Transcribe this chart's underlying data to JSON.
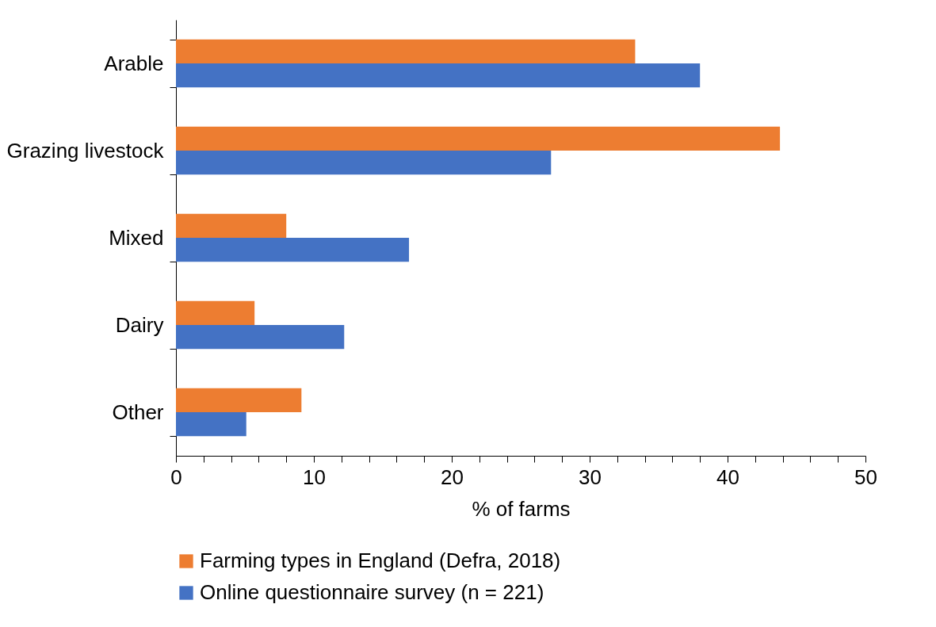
{
  "chart_data": {
    "type": "bar",
    "orientation": "horizontal",
    "xlabel": "% of farms",
    "categories": [
      "Arable",
      "Grazing livestock",
      "Mixed",
      "Dairy",
      "Other"
    ],
    "series": [
      {
        "name": "Farming types in England (Defra, 2018)",
        "color": "#ed7d31",
        "values": [
          33.3,
          43.8,
          8.0,
          5.7,
          9.1
        ]
      },
      {
        "name": "Online questionnaire survey (n = 221)",
        "color": "#4472c4",
        "values": [
          38.0,
          27.2,
          16.9,
          12.2,
          5.1
        ]
      }
    ],
    "xlim": [
      0,
      50
    ],
    "xticks": [
      0,
      {
        "value": 2,
        "label": null
      },
      {
        "value": 4,
        "label": null
      },
      {
        "value": 6,
        "label": null
      },
      {
        "value": 8,
        "label": null
      },
      10,
      {
        "value": 12,
        "label": null
      },
      {
        "value": 14,
        "label": null
      },
      {
        "value": 16,
        "label": null
      },
      {
        "value": 18,
        "label": null
      },
      20,
      {
        "value": 22,
        "label": null
      },
      {
        "value": 24,
        "label": null
      },
      {
        "value": 26,
        "label": null
      },
      {
        "value": 28,
        "label": null
      },
      30,
      {
        "value": 32,
        "label": null
      },
      {
        "value": 34,
        "label": null
      },
      {
        "value": 36,
        "label": null
      },
      {
        "value": 38,
        "label": null
      },
      40,
      {
        "value": 42,
        "label": null
      },
      {
        "value": 44,
        "label": null
      },
      {
        "value": 46,
        "label": null
      },
      {
        "value": 48,
        "label": null
      },
      50
    ],
    "grid": false,
    "legend": "bottom"
  }
}
